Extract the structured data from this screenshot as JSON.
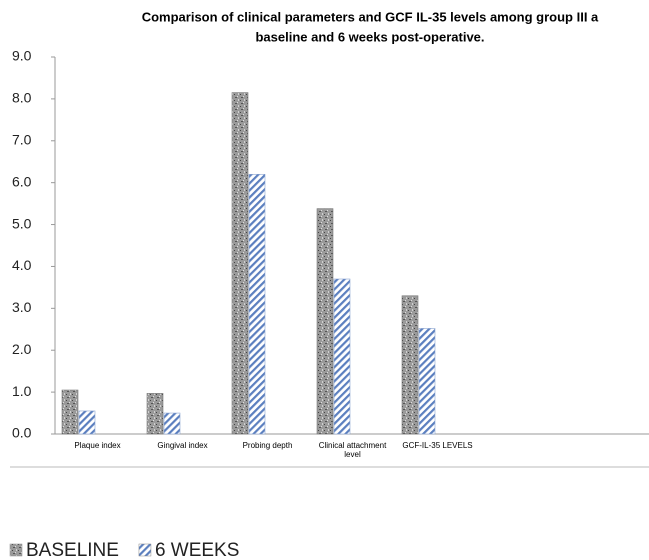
{
  "chart_data": {
    "type": "bar",
    "title": [
      "Comparison of clinical parameters and GCF IL-35 levels among group III a",
      "baseline and 6 weeks post-operative."
    ],
    "categories": [
      "Plaque index",
      "Gingival index",
      "Probing depth",
      "Clinical attachment level",
      "GCF-IL-35 LEVELS"
    ],
    "series": [
      {
        "name": "BASELINE",
        "color": "#8c8c8c",
        "values": [
          1.05,
          0.97,
          8.15,
          5.38,
          3.3
        ]
      },
      {
        "name": "6 WEEKS",
        "color": "#5b7fbf",
        "values": [
          0.55,
          0.5,
          6.2,
          3.7,
          2.52
        ]
      }
    ],
    "ylim": [
      0,
      9
    ],
    "yticks": [
      {
        "value": 0,
        "label": "0.0"
      },
      {
        "value": 1,
        "label": "1.0"
      },
      {
        "value": 2,
        "label": "2.0"
      },
      {
        "value": 3,
        "label": "3.0"
      },
      {
        "value": 4,
        "label": "4.0"
      },
      {
        "value": 5,
        "label": "5.0"
      },
      {
        "value": 6,
        "label": "6.0"
      },
      {
        "value": 7,
        "label": "7.0"
      },
      {
        "value": 8,
        "label": "8.0"
      },
      {
        "value": 9,
        "label": "9.0"
      }
    ],
    "grid": false,
    "legend": "bottom-left"
  }
}
